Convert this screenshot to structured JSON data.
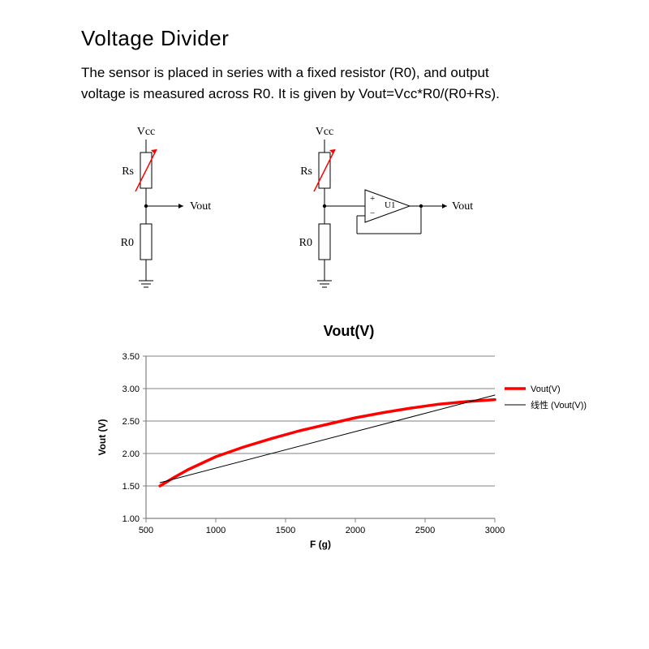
{
  "header": {
    "title": "Voltage Divider",
    "description": "The sensor is placed in series with a fixed resistor (R0), and output voltage is measured across R0. It is given by Vout=Vcc*R0/(R0+Rs)."
  },
  "circuit": {
    "labels": {
      "vcc": "Vcc",
      "rs": "Rs",
      "r0": "R0",
      "vout": "Vout",
      "amp": "U1"
    },
    "colors": {
      "wire": "#000000",
      "sensor_body": "#000000",
      "sensor_slash": "#ff0000",
      "resistor": "#000000"
    },
    "stroke_width": 1
  },
  "chart": {
    "type": "line",
    "title": "Vout(V)",
    "xlabel": "F (g)",
    "ylabel": "Vout (V)",
    "xlim": [
      500,
      3000
    ],
    "ylim": [
      1.0,
      3.5
    ],
    "xtick_step": 500,
    "ytick_step": 0.5,
    "xticks": [
      500,
      1000,
      1500,
      2000,
      2500,
      3000
    ],
    "yticks": [
      "1.00",
      "1.50",
      "2.00",
      "2.50",
      "3.00",
      "3.50"
    ],
    "background_color": "#ffffff",
    "grid_color": "#808080",
    "axis_color": "#808080",
    "series": [
      {
        "name": "Vout(V)",
        "color": "#ff0000",
        "line_width": 3.5,
        "points": [
          [
            600,
            1.5
          ],
          [
            700,
            1.63
          ],
          [
            800,
            1.75
          ],
          [
            900,
            1.85
          ],
          [
            1000,
            1.95
          ],
          [
            1200,
            2.1
          ],
          [
            1400,
            2.23
          ],
          [
            1600,
            2.35
          ],
          [
            1800,
            2.45
          ],
          [
            2000,
            2.55
          ],
          [
            2200,
            2.63
          ],
          [
            2400,
            2.7
          ],
          [
            2600,
            2.76
          ],
          [
            2800,
            2.8
          ],
          [
            3000,
            2.83
          ]
        ]
      },
      {
        "name": "线性 (Vout(V))",
        "color": "#000000",
        "line_width": 1,
        "points": [
          [
            600,
            1.55
          ],
          [
            3000,
            2.9
          ]
        ]
      }
    ],
    "legend": {
      "position": "right",
      "fontsize": 11
    },
    "label_fontsize": 12,
    "tick_fontsize": 11,
    "title_fontsize": 18
  }
}
